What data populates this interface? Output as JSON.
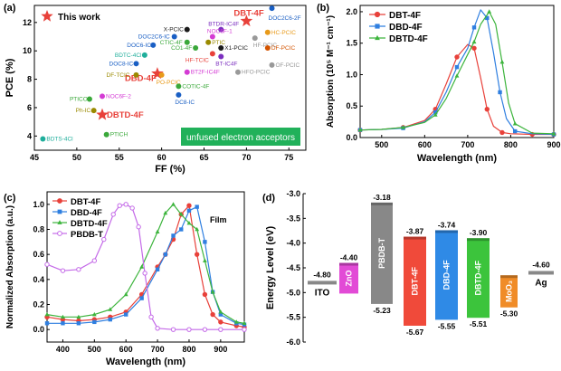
{
  "figure": {
    "panels": [
      {
        "id": "a",
        "label": "(a)",
        "xlabel": "FF (%)",
        "ylabel": "PCE (%)",
        "xlim": [
          45,
          77
        ],
        "ylim": [
          3,
          13.2
        ],
        "xticks": [
          "45",
          "50",
          "55",
          "60",
          "65",
          "70",
          "75"
        ],
        "yticks": [
          "4",
          "6",
          "8",
          "10",
          "12"
        ],
        "legend": "This work",
        "banner": "unfused electron acceptors"
      },
      {
        "id": "b",
        "label": "(b)",
        "xlabel": "Wavelength (nm)",
        "ylabel": "Absorption (10⁵ M⁻¹ cm⁻¹)",
        "xlim": [
          450,
          900
        ],
        "ylim": [
          0,
          2.1
        ],
        "xticks": [
          "500",
          "600",
          "700",
          "800",
          "900"
        ],
        "yticks": [
          "0.0",
          "0.5",
          "1.0",
          "1.5",
          "2.0"
        ]
      },
      {
        "id": "c",
        "label": "(c)",
        "xlabel": "Wavelength (nm)",
        "ylabel": "Normalized Absorption (a.u.)",
        "xlim": [
          350,
          975
        ],
        "ylim": [
          -0.1,
          1.1
        ],
        "xticks": [
          "400",
          "500",
          "600",
          "700",
          "800",
          "900"
        ],
        "yticks": [
          "0.0",
          "0.2",
          "0.4",
          "0.6",
          "0.8",
          "1.0"
        ],
        "annotation": "Film"
      },
      {
        "id": "d",
        "label": "(d)",
        "ylabel": "Energy Level (eV)",
        "ylim": [
          -6.0,
          -3.0
        ],
        "yticks": [
          "-3.0",
          "-3.5",
          "-4.0",
          "-4.5",
          "-5.0",
          "-5.5",
          "-6.0"
        ]
      }
    ]
  },
  "chart_data": [
    {
      "type": "scatter",
      "title": "",
      "xlabel": "FF (%)",
      "ylabel": "PCE (%)",
      "xlim": [
        45,
        77
      ],
      "ylim": [
        3,
        13.2
      ],
      "points": [
        {
          "label": "DBT-4F",
          "x": 70.0,
          "y": 12.1,
          "color": "#e8413a",
          "marker": "star",
          "this_work": true
        },
        {
          "label": "DBD-4F",
          "x": 59.5,
          "y": 8.4,
          "color": "#e8413a",
          "marker": "star",
          "this_work": true
        },
        {
          "label": "DBTD-4F",
          "x": 53.0,
          "y": 5.5,
          "color": "#e8413a",
          "marker": "star",
          "this_work": true
        },
        {
          "label": "DOC2C6-2F",
          "x": 73.0,
          "y": 13.0,
          "color": "#1a5fc4"
        },
        {
          "label": "X-PCIC",
          "x": 63.0,
          "y": 11.5,
          "color": "#1a1a1a"
        },
        {
          "label": "DOC2C6-IC",
          "x": 61.5,
          "y": 11.0,
          "color": "#1a5fc4"
        },
        {
          "label": "DOC6-IC",
          "x": 59.0,
          "y": 10.4,
          "color": "#1a5fc4"
        },
        {
          "label": "BDTC-4Cl",
          "x": 58.0,
          "y": 9.7,
          "color": "#1fae9b"
        },
        {
          "label": "DOC8-IC",
          "x": 57.0,
          "y": 9.1,
          "color": "#1a5fc4"
        },
        {
          "label": "DF-TCIC",
          "x": 57.0,
          "y": 8.3,
          "color": "#9a8a00"
        },
        {
          "label": "PO-PCIC",
          "x": 60.0,
          "y": 8.3,
          "color": "#e89a1a"
        },
        {
          "label": "CTIC-4F",
          "x": 63.0,
          "y": 10.6,
          "color": "#3aa83a"
        },
        {
          "label": "CO1-4F",
          "x": 64.0,
          "y": 10.2,
          "color": "#3aa83a"
        },
        {
          "label": "BTDR-IC4F",
          "x": 67.0,
          "y": 11.5,
          "color": "#7b2fbf"
        },
        {
          "label": "NOC6F-1",
          "x": 66.0,
          "y": 11.0,
          "color": "#d43bd4"
        },
        {
          "label": "PTIC",
          "x": 65.5,
          "y": 10.6,
          "color": "#9a8a00"
        },
        {
          "label": "X1-PCIC",
          "x": 67.0,
          "y": 10.2,
          "color": "#1a1a1a"
        },
        {
          "label": "HF-TCIC",
          "x": 66.0,
          "y": 9.8,
          "color": "#e8413a"
        },
        {
          "label": "BT-IC4F",
          "x": 67.0,
          "y": 9.6,
          "color": "#7b2fbf"
        },
        {
          "label": "HC-PCIC",
          "x": 72.5,
          "y": 11.3,
          "color": "#e89a1a"
        },
        {
          "label": "HF-PCIC",
          "x": 71.0,
          "y": 10.9,
          "color": "#999999"
        },
        {
          "label": "DF-PCIC",
          "x": 72.5,
          "y": 10.2,
          "color": "#d35400"
        },
        {
          "label": "OF-PCIC",
          "x": 73.0,
          "y": 9.0,
          "color": "#999999"
        },
        {
          "label": "BT2F-IC4F",
          "x": 63.0,
          "y": 8.5,
          "color": "#d43bd4"
        },
        {
          "label": "HFO-PCIC",
          "x": 69.0,
          "y": 8.5,
          "color": "#999999"
        },
        {
          "label": "COTIC-4F",
          "x": 62.0,
          "y": 7.5,
          "color": "#3aa83a"
        },
        {
          "label": "DC8-IC",
          "x": 62.0,
          "y": 6.9,
          "color": "#1a5fc4"
        },
        {
          "label": "PTICO",
          "x": 51.5,
          "y": 6.6,
          "color": "#3aa83a"
        },
        {
          "label": "NOC6F-2",
          "x": 53.0,
          "y": 6.8,
          "color": "#d43bd4"
        },
        {
          "label": "Ph-IC",
          "x": 52.0,
          "y": 5.8,
          "color": "#9a8a00"
        },
        {
          "label": "BDTS-4Cl",
          "x": 46.0,
          "y": 3.8,
          "color": "#1fae9b"
        },
        {
          "label": "PTICH",
          "x": 53.5,
          "y": 4.1,
          "color": "#3aa83a"
        }
      ]
    },
    {
      "type": "line",
      "title": "",
      "xlabel": "Wavelength (nm)",
      "ylabel": "Absorption (10⁵ M⁻¹ cm⁻¹)",
      "xlim": [
        450,
        900
      ],
      "ylim": [
        0,
        2.1
      ],
      "legend": "top-left",
      "series": [
        {
          "name": "DBT-4F",
          "color": "#e8413a",
          "marker": "circle",
          "x": [
            450,
            500,
            550,
            600,
            625,
            650,
            675,
            700,
            715,
            730,
            745,
            760,
            780,
            800,
            850,
            900
          ],
          "y": [
            0.12,
            0.13,
            0.16,
            0.27,
            0.45,
            0.85,
            1.28,
            1.48,
            1.42,
            0.95,
            0.45,
            0.18,
            0.08,
            0.06,
            0.05,
            0.05
          ]
        },
        {
          "name": "DBD-4F",
          "color": "#2f7fe0",
          "marker": "square",
          "x": [
            450,
            500,
            550,
            600,
            625,
            650,
            675,
            700,
            715,
            730,
            745,
            760,
            775,
            790,
            810,
            850,
            900
          ],
          "y": [
            0.12,
            0.13,
            0.15,
            0.25,
            0.4,
            0.72,
            1.12,
            1.42,
            1.75,
            2.03,
            1.9,
            1.35,
            0.72,
            0.3,
            0.1,
            0.06,
            0.05
          ]
        },
        {
          "name": "DBTD-4F",
          "color": "#3cb43c",
          "marker": "triangle",
          "x": [
            450,
            500,
            550,
            600,
            625,
            650,
            675,
            700,
            715,
            730,
            750,
            765,
            780,
            795,
            810,
            850,
            900
          ],
          "y": [
            0.12,
            0.13,
            0.16,
            0.24,
            0.36,
            0.62,
            0.98,
            1.32,
            1.52,
            1.8,
            2.0,
            1.8,
            1.2,
            0.55,
            0.22,
            0.07,
            0.06
          ]
        }
      ]
    },
    {
      "type": "line",
      "title": "",
      "xlabel": "Wavelength (nm)",
      "ylabel": "Normalized Absorption (a.u.)",
      "xlim": [
        350,
        975
      ],
      "ylim": [
        -0.1,
        1.1
      ],
      "legend": "top-left",
      "series": [
        {
          "name": "DBT-4F",
          "color": "#e8413a",
          "marker": "circle",
          "x": [
            350,
            400,
            450,
            500,
            550,
            600,
            650,
            700,
            725,
            750,
            775,
            800,
            825,
            850,
            875,
            900,
            950,
            975
          ],
          "y": [
            0.1,
            0.08,
            0.07,
            0.08,
            0.1,
            0.14,
            0.28,
            0.5,
            0.6,
            0.72,
            0.92,
            0.99,
            0.6,
            0.28,
            0.12,
            0.06,
            0.03,
            0.02
          ]
        },
        {
          "name": "DBD-4F",
          "color": "#2f7fe0",
          "marker": "square",
          "x": [
            350,
            400,
            450,
            500,
            550,
            600,
            650,
            700,
            725,
            750,
            775,
            800,
            825,
            850,
            875,
            900,
            950,
            975
          ],
          "y": [
            0.05,
            0.05,
            0.05,
            0.06,
            0.08,
            0.12,
            0.25,
            0.48,
            0.6,
            0.75,
            0.8,
            0.95,
            0.98,
            0.7,
            0.3,
            0.12,
            0.05,
            0.04
          ]
        },
        {
          "name": "DBTD-4F",
          "color": "#3cb43c",
          "marker": "triangle",
          "x": [
            350,
            400,
            450,
            500,
            550,
            600,
            650,
            700,
            725,
            750,
            775,
            800,
            825,
            850,
            875,
            900,
            950,
            975
          ],
          "y": [
            0.12,
            0.1,
            0.1,
            0.12,
            0.16,
            0.28,
            0.5,
            0.78,
            0.93,
            1.0,
            0.92,
            0.85,
            0.8,
            0.55,
            0.3,
            0.14,
            0.06,
            0.05
          ]
        },
        {
          "name": "PBDB-T",
          "color": "#c46ae8",
          "marker": "circle-open",
          "x": [
            350,
            400,
            450,
            500,
            530,
            560,
            580,
            600,
            620,
            640,
            660,
            680,
            700,
            750,
            800,
            850,
            900,
            975
          ],
          "y": [
            0.52,
            0.47,
            0.48,
            0.55,
            0.72,
            0.92,
            0.99,
            1.0,
            0.97,
            0.82,
            0.45,
            0.1,
            0.01,
            0.0,
            0.0,
            0.0,
            0.0,
            0.0
          ]
        }
      ]
    },
    {
      "type": "bar",
      "title": "",
      "ylabel": "Energy Level (eV)",
      "ylim": [
        -6.0,
        -3.0
      ],
      "levels": [
        {
          "name": "ITO",
          "kind": "line",
          "value": -4.8,
          "value_label": "-4.80",
          "color": "#888888"
        },
        {
          "name": "ZnO",
          "kind": "bar",
          "top": -4.4,
          "bottom": -5.02,
          "top_label": "-4.40",
          "color": "#e24bd6"
        },
        {
          "name": "PBDB-T",
          "kind": "bar",
          "top": -3.18,
          "bottom": -5.23,
          "top_label": "-3.18",
          "bottom_label": "-5.23",
          "color": "#888888"
        },
        {
          "name": "DBT-4F",
          "kind": "bar",
          "top": -3.87,
          "bottom": -5.67,
          "top_label": "-3.87",
          "bottom_label": "-5.67",
          "color": "#f04a3a"
        },
        {
          "name": "DBD-4F",
          "kind": "bar",
          "top": -3.74,
          "bottom": -5.55,
          "top_label": "-3.74",
          "bottom_label": "-5.55",
          "color": "#2f8ae6"
        },
        {
          "name": "DBTD-4F",
          "kind": "bar",
          "top": -3.9,
          "bottom": -5.51,
          "top_label": "-3.90",
          "bottom_label": "-5.51",
          "color": "#3cc43c"
        },
        {
          "name": "MoO₃",
          "kind": "bar",
          "top": -4.65,
          "bottom": -5.3,
          "bottom_label": "-5.30",
          "color": "#f08c28"
        },
        {
          "name": "Ag",
          "kind": "line",
          "value": -4.6,
          "value_label": "-4.60",
          "color": "#888888"
        }
      ]
    }
  ]
}
